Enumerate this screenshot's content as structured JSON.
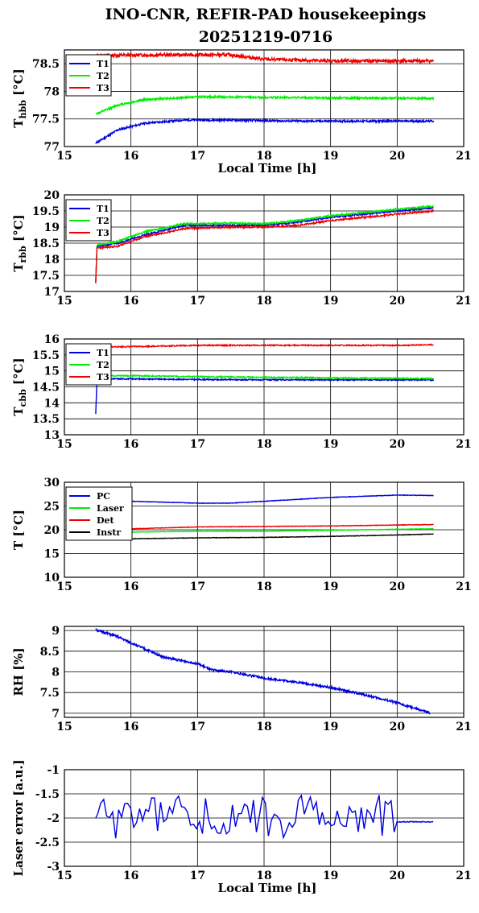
{
  "title": [
    "INO-CNR, REFIR-PAD housekeepings",
    "20251219-0716"
  ],
  "colors": {
    "blue": "#0000e0",
    "green": "#00ee00",
    "red": "#ee0000",
    "black": "#000000"
  },
  "chart_data": [
    {
      "type": "line",
      "ylabel": {
        "main": "T",
        "sub": "hbb",
        "unit": " [°C]"
      },
      "xlabel": "Local Time [h]",
      "xlim": [
        15,
        21
      ],
      "ylim": [
        77,
        78.75
      ],
      "xticks": [
        "15",
        "16",
        "17",
        "18",
        "19",
        "20",
        "21"
      ],
      "yticks": [
        {
          "v": 77,
          "t": "77"
        },
        {
          "v": 77.5,
          "t": "77.5"
        },
        {
          "v": 78,
          "t": "78"
        },
        {
          "v": 78.5,
          "t": "78.5"
        }
      ],
      "grid": true,
      "legend_position": "top-left",
      "series": [
        {
          "name": "T1",
          "color": "blue",
          "start": 77.05,
          "keys": [
            [
              15.5,
              77.08
            ],
            [
              15.8,
              77.3
            ],
            [
              16.2,
              77.42
            ],
            [
              16.8,
              77.48
            ],
            [
              17.5,
              77.48
            ],
            [
              18.5,
              77.46
            ],
            [
              19.5,
              77.46
            ],
            [
              20.55,
              77.46
            ]
          ],
          "noise": 0.018,
          "seed": 11
        },
        {
          "name": "T2",
          "color": "green",
          "start": 77.6,
          "keys": [
            [
              15.5,
              77.6
            ],
            [
              15.8,
              77.75
            ],
            [
              16.2,
              77.85
            ],
            [
              17,
              77.9
            ],
            [
              18,
              77.89
            ],
            [
              19,
              77.88
            ],
            [
              20.55,
              77.87
            ]
          ],
          "noise": 0.018,
          "seed": 12
        },
        {
          "name": "T3",
          "color": "red",
          "start": 78.65,
          "keys": [
            [
              15.5,
              78.65
            ],
            [
              16.5,
              78.66
            ],
            [
              17.5,
              78.66
            ],
            [
              18,
              78.58
            ],
            [
              19,
              78.55
            ],
            [
              20.55,
              78.55
            ]
          ],
          "noise": 0.03,
          "seed": 13
        }
      ]
    },
    {
      "type": "line",
      "ylabel": {
        "main": "T",
        "sub": "rbb",
        "unit": " [°C]"
      },
      "xlabel": "",
      "xlim": [
        15,
        21
      ],
      "ylim": [
        17,
        20
      ],
      "xticks": [
        "15",
        "16",
        "17",
        "18",
        "19",
        "20",
        "21"
      ],
      "yticks": [
        {
          "v": 17,
          "t": "17"
        },
        {
          "v": 17.5,
          "t": "17.5"
        },
        {
          "v": 18,
          "t": "18"
        },
        {
          "v": 18.5,
          "t": "18.5"
        },
        {
          "v": 19,
          "t": "19"
        },
        {
          "v": 19.5,
          "t": "19.5"
        },
        {
          "v": 20,
          "t": "20"
        }
      ],
      "grid": true,
      "legend_position": "top-left",
      "series": [
        {
          "name": "T1",
          "color": "blue",
          "start": 17.3,
          "keys": [
            [
              15.5,
              18.4
            ],
            [
              15.8,
              18.5
            ],
            [
              16.2,
              18.75
            ],
            [
              16.8,
              19.05
            ],
            [
              17.5,
              19.05
            ],
            [
              18,
              19.05
            ],
            [
              18.5,
              19.15
            ],
            [
              19,
              19.3
            ],
            [
              19.5,
              19.4
            ],
            [
              20,
              19.5
            ],
            [
              20.55,
              19.6
            ]
          ],
          "noise": 0.025,
          "seed": 21
        },
        {
          "name": "T2",
          "color": "green",
          "start": 17.35,
          "keys": [
            [
              15.5,
              18.45
            ],
            [
              15.8,
              18.55
            ],
            [
              16.2,
              18.85
            ],
            [
              16.8,
              19.1
            ],
            [
              17.5,
              19.12
            ],
            [
              18,
              19.1
            ],
            [
              18.5,
              19.2
            ],
            [
              19,
              19.35
            ],
            [
              19.5,
              19.45
            ],
            [
              20,
              19.55
            ],
            [
              20.55,
              19.65
            ]
          ],
          "noise": 0.025,
          "seed": 22
        },
        {
          "name": "T3",
          "color": "red",
          "start": 17.25,
          "keys": [
            [
              15.5,
              18.35
            ],
            [
              15.8,
              18.4
            ],
            [
              16.2,
              18.7
            ],
            [
              16.8,
              18.95
            ],
            [
              17.5,
              19.0
            ],
            [
              18,
              19.0
            ],
            [
              18.5,
              19.05
            ],
            [
              19,
              19.2
            ],
            [
              19.5,
              19.3
            ],
            [
              20,
              19.4
            ],
            [
              20.55,
              19.5
            ]
          ],
          "noise": 0.025,
          "seed": 23
        }
      ]
    },
    {
      "type": "line",
      "ylabel": {
        "main": "T",
        "sub": "cbb",
        "unit": " [°C]"
      },
      "xlabel": "",
      "xlim": [
        15,
        21
      ],
      "ylim": [
        13,
        16
      ],
      "xticks": [
        "15",
        "16",
        "17",
        "18",
        "19",
        "20",
        "21"
      ],
      "yticks": [
        {
          "v": 13,
          "t": "13"
        },
        {
          "v": 13.5,
          "t": "13.5"
        },
        {
          "v": 14,
          "t": "14"
        },
        {
          "v": 14.5,
          "t": "14.5"
        },
        {
          "v": 15,
          "t": "15"
        },
        {
          "v": 15.5,
          "t": "15.5"
        },
        {
          "v": 16,
          "t": "16"
        }
      ],
      "grid": true,
      "legend_position": "top-left",
      "series": [
        {
          "name": "T1",
          "color": "blue",
          "start": 13.65,
          "keys": [
            [
              15.5,
              14.75
            ],
            [
              16,
              14.75
            ],
            [
              17,
              14.73
            ],
            [
              18,
              14.72
            ],
            [
              19,
              14.72
            ],
            [
              20,
              14.72
            ],
            [
              20.55,
              14.72
            ]
          ],
          "noise": 0.018,
          "seed": 31
        },
        {
          "name": "T2",
          "color": "green",
          "start": 14.8,
          "keys": [
            [
              15.5,
              14.85
            ],
            [
              16,
              14.85
            ],
            [
              17,
              14.82
            ],
            [
              18,
              14.8
            ],
            [
              19,
              14.78
            ],
            [
              20,
              14.77
            ],
            [
              20.55,
              14.76
            ]
          ],
          "noise": 0.018,
          "seed": 32
        },
        {
          "name": "T3",
          "color": "red",
          "start": 15.75,
          "keys": [
            [
              15.5,
              15.75
            ],
            [
              16,
              15.76
            ],
            [
              17,
              15.8
            ],
            [
              18,
              15.8
            ],
            [
              19,
              15.8
            ],
            [
              20,
              15.8
            ],
            [
              20.55,
              15.82
            ]
          ],
          "noise": 0.018,
          "seed": 33
        }
      ]
    },
    {
      "type": "line",
      "ylabel": {
        "main": "T [°C]",
        "sub": "",
        "unit": ""
      },
      "xlabel": "",
      "xlim": [
        15,
        21
      ],
      "ylim": [
        10,
        30
      ],
      "xticks": [
        "15",
        "16",
        "17",
        "18",
        "19",
        "20",
        "21"
      ],
      "yticks": [
        {
          "v": 10,
          "t": "10"
        },
        {
          "v": 15,
          "t": "15"
        },
        {
          "v": 20,
          "t": "20"
        },
        {
          "v": 25,
          "t": "25"
        },
        {
          "v": 30,
          "t": "30"
        }
      ],
      "grid": true,
      "legend_position": "top-left",
      "series": [
        {
          "name": "PC",
          "color": "blue",
          "start": 25.9,
          "keys": [
            [
              15.5,
              25.9
            ],
            [
              16,
              26.0
            ],
            [
              17,
              25.6
            ],
            [
              17.5,
              25.6
            ],
            [
              18,
              26.0
            ],
            [
              19,
              26.8
            ],
            [
              20,
              27.3
            ],
            [
              20.55,
              27.2
            ]
          ],
          "noise": 0.05,
          "seed": 41
        },
        {
          "name": "Laser",
          "color": "green",
          "start": 19.3,
          "keys": [
            [
              15.5,
              19.3
            ],
            [
              16,
              19.5
            ],
            [
              17,
              19.7
            ],
            [
              18,
              19.7
            ],
            [
              19,
              19.9
            ],
            [
              20,
              20.1
            ],
            [
              20.55,
              20.2
            ]
          ],
          "noise": 0.05,
          "seed": 42
        },
        {
          "name": "Det",
          "color": "red",
          "start": 20.0,
          "keys": [
            [
              15.5,
              20.0
            ],
            [
              16,
              20.2
            ],
            [
              17,
              20.6
            ],
            [
              18,
              20.7
            ],
            [
              19,
              20.8
            ],
            [
              20,
              21.0
            ],
            [
              20.55,
              21.1
            ]
          ],
          "noise": 0.05,
          "seed": 43
        },
        {
          "name": "Instr",
          "color": "black",
          "start": 18.0,
          "keys": [
            [
              15.5,
              18.0
            ],
            [
              16,
              18.1
            ],
            [
              17,
              18.3
            ],
            [
              18,
              18.4
            ],
            [
              19,
              18.6
            ],
            [
              20,
              18.9
            ],
            [
              20.55,
              19.1
            ]
          ],
          "noise": 0.05,
          "seed": 44
        }
      ]
    },
    {
      "type": "line",
      "ylabel": {
        "main": "RH [%]",
        "sub": "",
        "unit": ""
      },
      "xlabel": "",
      "xlim": [
        15,
        21
      ],
      "ylim": [
        6.9,
        9.1
      ],
      "xticks": [
        "15",
        "16",
        "17",
        "18",
        "19",
        "20",
        "21"
      ],
      "yticks": [
        {
          "v": 7,
          "t": "7"
        },
        {
          "v": 7.5,
          "t": "7.5"
        },
        {
          "v": 8,
          "t": "8"
        },
        {
          "v": 8.5,
          "t": "8.5"
        },
        {
          "v": 9,
          "t": "9"
        }
      ],
      "grid": true,
      "legend_position": "none",
      "series": [
        {
          "name": "",
          "color": "blue",
          "start": 9.05,
          "keys": [
            [
              15.5,
              9.0
            ],
            [
              15.8,
              8.85
            ],
            [
              16,
              8.7
            ],
            [
              16.5,
              8.35
            ],
            [
              17,
              8.2
            ],
            [
              17.2,
              8.05
            ],
            [
              17.5,
              8.0
            ],
            [
              18,
              7.85
            ],
            [
              18.5,
              7.75
            ],
            [
              19,
              7.62
            ],
            [
              19.5,
              7.45
            ],
            [
              20,
              7.25
            ],
            [
              20.5,
              7.0
            ]
          ],
          "noise": 0.025,
          "seed": 51
        }
      ]
    },
    {
      "type": "line",
      "ylabel": {
        "main": "Laser error [a.u.]",
        "sub": "",
        "unit": ""
      },
      "xlabel": "Local Time [h]",
      "xlim": [
        15,
        21
      ],
      "ylim": [
        -3,
        -1
      ],
      "xticks": [
        "15",
        "16",
        "17",
        "18",
        "19",
        "20",
        "21"
      ],
      "yticks": [
        {
          "v": -3,
          "t": "-3"
        },
        {
          "v": -2.5,
          "t": "-2.5"
        },
        {
          "v": -2,
          "t": "-2"
        },
        {
          "v": -1.5,
          "t": "-1.5"
        },
        {
          "v": -1,
          "t": "-1"
        }
      ],
      "grid": true,
      "legend_position": "none",
      "series": [
        {
          "name": "",
          "color": "blue",
          "start": -2.0,
          "keys": [
            [
              15.5,
              -2.0
            ],
            [
              20.0,
              -2.0
            ]
          ],
          "noise": 0.0,
          "seed": 61,
          "osc": {
            "from": 15.5,
            "to": 20.0,
            "amp": 0.42,
            "step": 0.045
          },
          "tail": {
            "from": 20.0,
            "to": 20.55,
            "value": -2.08,
            "noise": 0.02
          }
        }
      ]
    }
  ]
}
